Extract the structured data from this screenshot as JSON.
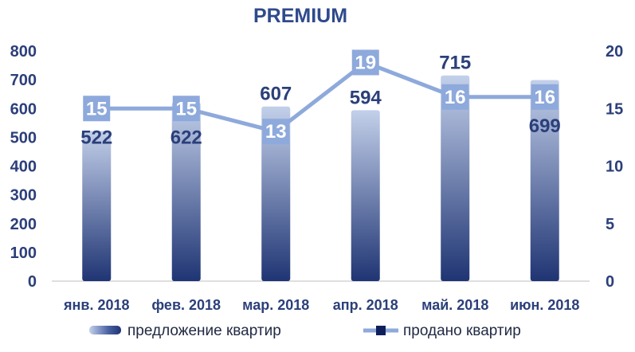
{
  "chart_data": {
    "type": "bar",
    "title": "PREMIUM",
    "categories": [
      "янв. 2018",
      "фев. 2018",
      "мар. 2018",
      "апр. 2018",
      "май. 2018",
      "июн. 2018"
    ],
    "series": [
      {
        "name": "предложение квартир",
        "type": "bar",
        "axis": "left",
        "values": [
          522,
          622,
          607,
          594,
          715,
          699
        ],
        "labels": [
          "522",
          "622",
          "607",
          "594",
          "715",
          "699"
        ]
      },
      {
        "name": "продано квартир",
        "type": "line",
        "axis": "right",
        "values": [
          15,
          15,
          13,
          19,
          16,
          16
        ],
        "labels": [
          "15",
          "15",
          "13",
          "19",
          "16",
          "16"
        ]
      }
    ],
    "y_left": {
      "min": 0,
      "max": 800,
      "ticks": [
        "0",
        "100",
        "200",
        "300",
        "400",
        "500",
        "600",
        "700",
        "800"
      ]
    },
    "y_right": {
      "min": 0,
      "max": 20,
      "ticks": [
        "0",
        "5",
        "10",
        "15",
        "20"
      ]
    },
    "grid": false,
    "legend": "bottom",
    "colors": {
      "bar_top": "#c3d0ea",
      "bar_bottom": "#1f3473",
      "line": "#8ea9db",
      "line_label_box": "#8ea9db",
      "text": "#2b3f7a",
      "title": "#2f4a8c",
      "axis": "#bfbfbf",
      "legend_line_marker": "#0f1f5c"
    }
  }
}
